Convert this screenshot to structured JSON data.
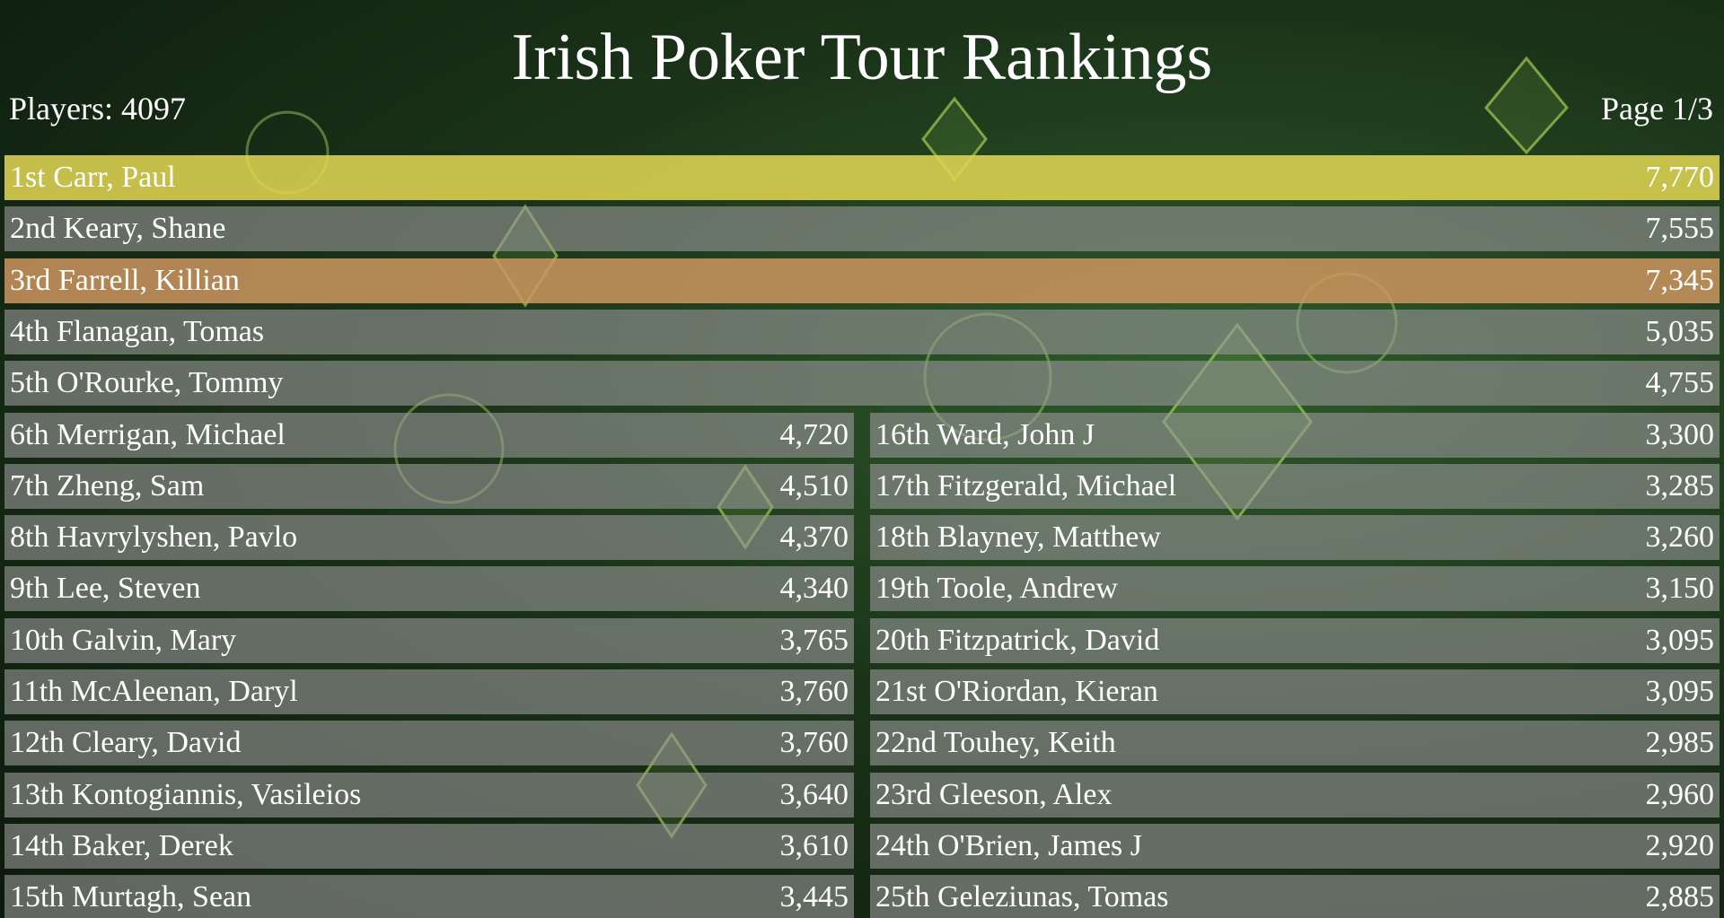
{
  "header": {
    "title": "Irish Poker Tour Rankings",
    "players": "Players: 4097",
    "page": "Page 1/3"
  },
  "top_rows": [
    {
      "rank": "1st",
      "name": "Carr, Paul",
      "points": "7,770"
    },
    {
      "rank": "2nd",
      "name": "Keary, Shane",
      "points": "7,555"
    },
    {
      "rank": "3rd",
      "name": "Farrell, Killian",
      "points": "7,345"
    },
    {
      "rank": "4th",
      "name": "Flanagan, Tomas",
      "points": "5,035"
    },
    {
      "rank": "5th",
      "name": "O'Rourke, Tommy",
      "points": "4,755"
    }
  ],
  "left_column": [
    {
      "rank": "6th",
      "name": "Merrigan, Michael",
      "points": "4,720"
    },
    {
      "rank": "7th",
      "name": "Zheng, Sam",
      "points": "4,510"
    },
    {
      "rank": "8th",
      "name": "Havrylyshen, Pavlo",
      "points": "4,370"
    },
    {
      "rank": "9th",
      "name": "Lee, Steven",
      "points": "4,340"
    },
    {
      "rank": "10th",
      "name": "Galvin, Mary",
      "points": "3,765"
    },
    {
      "rank": "11th",
      "name": "McAleenan, Daryl",
      "points": "3,760"
    },
    {
      "rank": "12th",
      "name": "Cleary, David",
      "points": "3,760"
    },
    {
      "rank": "13th",
      "name": "Kontogiannis, Vasileios",
      "points": "3,640"
    },
    {
      "rank": "14th",
      "name": "Baker, Derek",
      "points": "3,610"
    },
    {
      "rank": "15th",
      "name": "Murtagh, Sean",
      "points": "3,445"
    }
  ],
  "right_column": [
    {
      "rank": "16th",
      "name": "Ward, John J",
      "points": "3,300"
    },
    {
      "rank": "17th",
      "name": "Fitzgerald, Michael",
      "points": "3,285"
    },
    {
      "rank": "18th",
      "name": "Blayney, Matthew",
      "points": "3,260"
    },
    {
      "rank": "19th",
      "name": "Toole, Andrew",
      "points": "3,150"
    },
    {
      "rank": "20th",
      "name": "Fitzpatrick, David",
      "points": "3,095"
    },
    {
      "rank": "21st",
      "name": "O'Riordan, Kieran",
      "points": "3,095"
    },
    {
      "rank": "22nd",
      "name": "Touhey, Keith",
      "points": "2,985"
    },
    {
      "rank": "23rd",
      "name": "Gleeson, Alex",
      "points": "2,960"
    },
    {
      "rank": "24th",
      "name": "O'Brien, James J",
      "points": "2,920"
    },
    {
      "rank": "25th",
      "name": "Geleziunas, Tomas",
      "points": "2,885"
    }
  ]
}
